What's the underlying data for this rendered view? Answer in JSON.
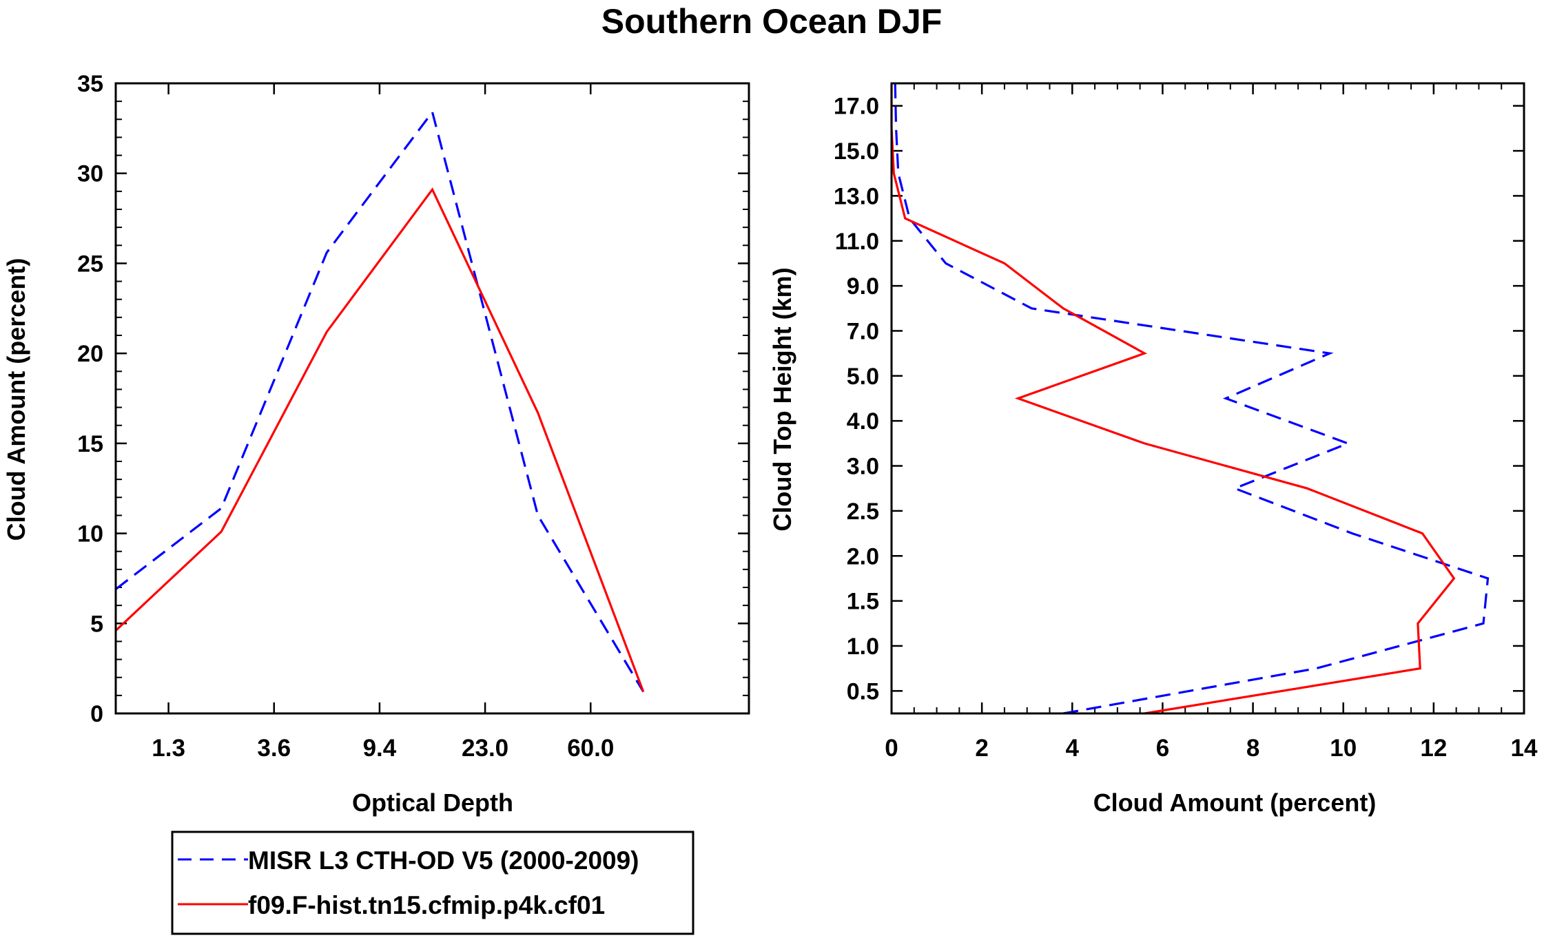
{
  "title": "Southern Ocean DJF",
  "legend": {
    "items": [
      {
        "label": "MISR L3 CTH-OD V5 (2000-2009)",
        "color": "#0000ff",
        "style": "dashed"
      },
      {
        "label": "f09.F-hist.tn15.cfmip.p4k.cf01",
        "color": "#ff0000",
        "style": "solid"
      }
    ]
  },
  "chart_data": [
    {
      "type": "line",
      "xlabel": "Optical Depth",
      "ylabel": "Cloud Amount (percent)",
      "xlim": [
        0,
        6
      ],
      "ylim": [
        0,
        35
      ],
      "x_ticks": [
        {
          "pos": 0.5,
          "label": "1.3"
        },
        {
          "pos": 1.5,
          "label": "3.6"
        },
        {
          "pos": 2.5,
          "label": "9.4"
        },
        {
          "pos": 3.5,
          "label": "23.0"
        },
        {
          "pos": 4.5,
          "label": "60.0"
        }
      ],
      "y_ticks": [
        0,
        5,
        10,
        15,
        20,
        25,
        30,
        35
      ],
      "x_minor_count": 0,
      "y_minor_step": 1,
      "x": [
        0,
        1,
        2,
        3,
        4,
        5
      ],
      "series": [
        {
          "name": "MISR L3 CTH-OD V5 (2000-2009)",
          "color": "#0000ff",
          "style": "dashed",
          "values": [
            6.9,
            11.4,
            25.6,
            33.4,
            11.0,
            1.2
          ]
        },
        {
          "name": "f09.F-hist.tn15.cfmip.p4k.cf01",
          "color": "#ff0000",
          "style": "solid",
          "values": [
            4.6,
            10.1,
            21.2,
            29.1,
            16.7,
            1.2
          ]
        }
      ]
    },
    {
      "type": "line",
      "xlabel": "Cloud Amount (percent)",
      "ylabel": "Cloud Top Height (km)",
      "xlim": [
        0,
        14
      ],
      "ylim": [
        0,
        14
      ],
      "x_ticks": [
        {
          "pos": 0,
          "label": "0"
        },
        {
          "pos": 2,
          "label": "2"
        },
        {
          "pos": 4,
          "label": "4"
        },
        {
          "pos": 6,
          "label": "6"
        },
        {
          "pos": 8,
          "label": "8"
        },
        {
          "pos": 10,
          "label": "10"
        },
        {
          "pos": 12,
          "label": "12"
        },
        {
          "pos": 14,
          "label": "14"
        }
      ],
      "y_ticks": [
        {
          "pos": 0.5,
          "label": "0.5"
        },
        {
          "pos": 1.5,
          "label": "1.0"
        },
        {
          "pos": 2.5,
          "label": "1.5"
        },
        {
          "pos": 3.5,
          "label": "2.0"
        },
        {
          "pos": 4.5,
          "label": "2.5"
        },
        {
          "pos": 5.5,
          "label": "3.0"
        },
        {
          "pos": 6.5,
          "label": "4.0"
        },
        {
          "pos": 7.5,
          "label": "5.0"
        },
        {
          "pos": 8.5,
          "label": "7.0"
        },
        {
          "pos": 9.5,
          "label": "9.0"
        },
        {
          "pos": 10.5,
          "label": "11.0"
        },
        {
          "pos": 11.5,
          "label": "13.0"
        },
        {
          "pos": 12.5,
          "label": "15.0"
        },
        {
          "pos": 13.5,
          "label": "17.0"
        }
      ],
      "x_minor_step": 0.5,
      "y_minor_count": 0,
      "y": [
        0,
        1,
        2,
        3,
        4,
        5,
        6,
        7,
        8,
        9,
        10,
        11,
        12,
        13,
        14
      ],
      "series": [
        {
          "name": "MISR L3 CTH-OD V5 (2000-2009)",
          "color": "#0000ff",
          "style": "dashed",
          "values": [
            3.8,
            9.4,
            13.1,
            13.2,
            10.2,
            7.6,
            10.1,
            7.4,
            9.7,
            3.1,
            1.2,
            0.4,
            0.15,
            0.1,
            0.08
          ]
        },
        {
          "name": "f09.F-hist.tn15.cfmip.p4k.cf01",
          "color": "#ff0000",
          "style": "solid",
          "values": [
            5.6,
            11.7,
            11.65,
            12.45,
            11.75,
            9.2,
            5.6,
            2.8,
            5.6,
            3.8,
            2.5,
            0.3,
            0.05,
            0.0,
            0.0
          ]
        }
      ]
    }
  ]
}
